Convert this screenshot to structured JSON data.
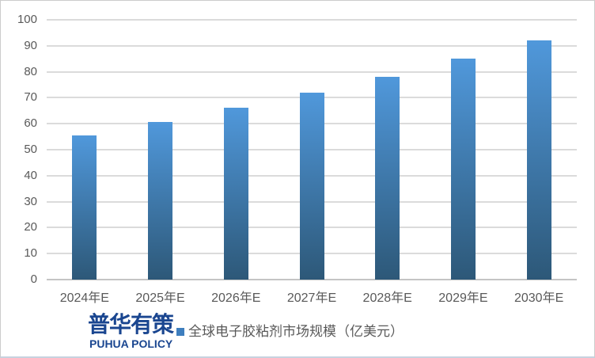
{
  "chart_data": {
    "type": "bar",
    "categories": [
      "2024年E",
      "2025年E",
      "2026年E",
      "2027年E",
      "2028年E",
      "2029年E",
      "2030年E"
    ],
    "values": [
      55.5,
      60.7,
      66.2,
      72.0,
      78.0,
      85.2,
      92.1
    ],
    "series_name": "全球电子胶粘剂市场规模（亿美元）",
    "title": "",
    "xlabel": "",
    "ylabel": "",
    "ylim": [
      0,
      100
    ],
    "ytick_step": 10,
    "grid": true,
    "legend_position": "bottom"
  },
  "legend": {
    "label": "全球电子胶粘剂市场规模（亿美元）"
  },
  "branding": {
    "logo_text": "普华有策",
    "logo_subtext": "PUHUA POLICY"
  },
  "colors": {
    "bar_top": "#5098DB",
    "bar_bottom": "#2D5878",
    "gridline": "#DBDBDB",
    "axis_line": "#C4C4C4",
    "axis_text": "#595959",
    "legend_text": "#595959",
    "legend_marker": "#3E7EBE",
    "logo_blue": "#1A4690",
    "background": "#FFFFFF"
  }
}
